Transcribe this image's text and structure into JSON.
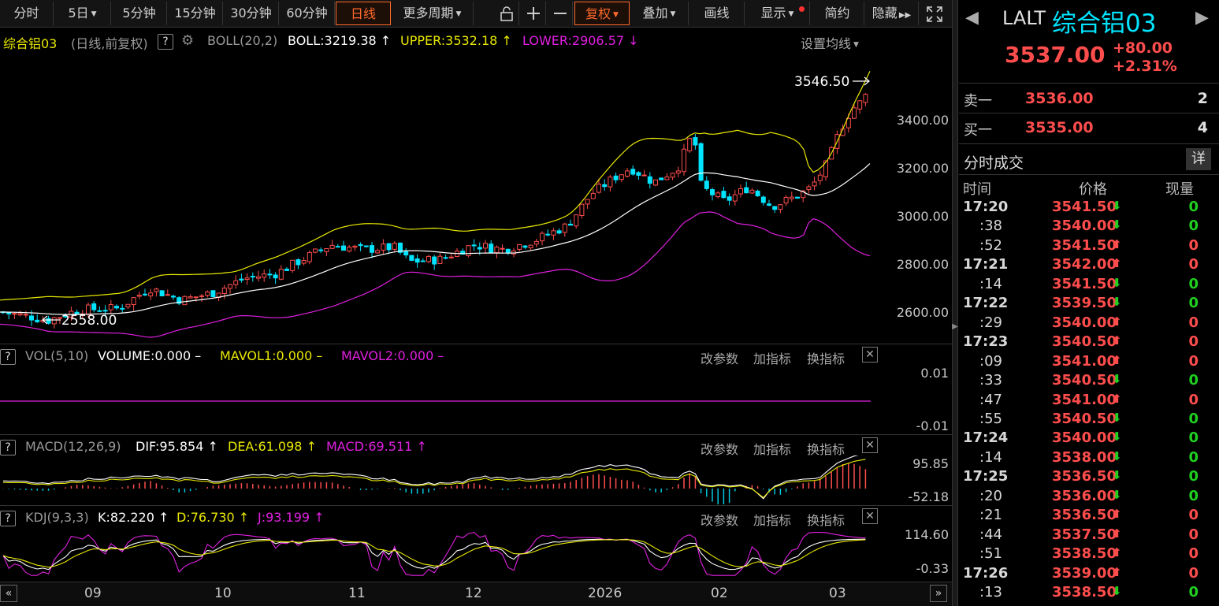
{
  "toolbar": {
    "periods": [
      {
        "label": "分时",
        "dropdown": false
      },
      {
        "label": "5日",
        "dropdown": true
      },
      {
        "label": "5分钟",
        "dropdown": false
      },
      {
        "label": "15分钟",
        "dropdown": false
      },
      {
        "label": "30分钟",
        "dropdown": false
      },
      {
        "label": "60分钟",
        "dropdown": false
      },
      {
        "label": "日线",
        "dropdown": false,
        "active": true
      },
      {
        "label": "更多周期",
        "dropdown": true
      }
    ],
    "icons": [
      "lock-icon",
      "zoom-in-icon",
      "zoom-out-icon"
    ],
    "right_buttons": [
      {
        "label": "复权",
        "dropdown": true
      },
      {
        "label": "叠加",
        "dropdown": true
      },
      {
        "label": "画线",
        "dropdown": false
      },
      {
        "label": "显示",
        "dropdown": true
      },
      {
        "label": "简约",
        "dropdown": false
      },
      {
        "label": "隐藏",
        "dropdown": false
      }
    ]
  },
  "main_chart": {
    "name": "综合铝03",
    "mode": "(日线,前复权)",
    "help": "?",
    "indicator": "BOLL(20,2)",
    "boll": "BOLL:3219.38",
    "upper": "UPPER:3532.18",
    "lower": "LOWER:2906.57",
    "settings": "设置均线",
    "high_label": "3546.50",
    "low_label": "2558.00",
    "y_labels": [
      "3400.00",
      "3200.00",
      "3000.00",
      "2800.00",
      "2600.00"
    ]
  },
  "vol_panel": {
    "help": "?",
    "name": "VOL(5,10)",
    "v1": "VOLUME:0.000",
    "v2": "MAVOL1:0.000",
    "v3": "MAVOL2:0.000",
    "y_labels": [
      "0.01",
      "-0.01"
    ]
  },
  "macd_panel": {
    "help": "?",
    "name": "MACD(12,26,9)",
    "v1": "DIF:95.854",
    "v2": "DEA:61.098",
    "v3": "MACD:69.511",
    "y_labels": [
      "95.85",
      "-52.18"
    ]
  },
  "kdj_panel": {
    "help": "?",
    "name": "KDJ(9,3,3)",
    "v1": "K:82.220",
    "v2": "D:76.730",
    "v3": "J:93.199",
    "y_labels": [
      "114.60",
      "-0.33"
    ]
  },
  "panel_tools": {
    "params": "改参数",
    "add": "加指标",
    "switch": "换指标"
  },
  "x_axis": [
    "09",
    "10",
    "11",
    "12",
    "2026",
    "02",
    "03"
  ],
  "colors": {
    "up": "#ff4d4d",
    "down": "#00e5ff",
    "upper": "#e8e800",
    "mid": "#ffffff",
    "lower": "#e020e0",
    "accent": "#ff6a2a"
  },
  "quote": {
    "symbol": "LALT",
    "name": "综合铝03",
    "price": "3537.00",
    "change": "+80.00",
    "change_pct": "+2.31%",
    "ask_label": "卖一",
    "ask_price": "3536.00",
    "ask_vol": "2",
    "bid_label": "买一",
    "bid_price": "3535.00",
    "bid_vol": "4",
    "ticks_title": "分时成交",
    "detail_btn": "详",
    "col_time": "时间",
    "col_price": "价格",
    "col_vol": "现量"
  },
  "ticks": [
    {
      "time": "17:20",
      "price": "3541.50",
      "dir": "down",
      "vol": "0"
    },
    {
      "time": ":38",
      "price": "3540.00",
      "dir": "down",
      "vol": "0"
    },
    {
      "time": ":52",
      "price": "3541.50",
      "dir": "up",
      "vol": "0"
    },
    {
      "time": "17:21",
      "price": "3542.00",
      "dir": "up",
      "vol": "0"
    },
    {
      "time": ":14",
      "price": "3541.50",
      "dir": "down",
      "vol": "0"
    },
    {
      "time": "17:22",
      "price": "3539.50",
      "dir": "down",
      "vol": "0"
    },
    {
      "time": ":29",
      "price": "3540.00",
      "dir": "up",
      "vol": "0"
    },
    {
      "time": "17:23",
      "price": "3540.50",
      "dir": "up",
      "vol": "0"
    },
    {
      "time": ":09",
      "price": "3541.00",
      "dir": "up",
      "vol": "0"
    },
    {
      "time": ":33",
      "price": "3540.50",
      "dir": "down",
      "vol": "0"
    },
    {
      "time": ":47",
      "price": "3541.00",
      "dir": "up",
      "vol": "0"
    },
    {
      "time": ":55",
      "price": "3540.50",
      "dir": "down",
      "vol": "0"
    },
    {
      "time": "17:24",
      "price": "3540.00",
      "dir": "down",
      "vol": "0"
    },
    {
      "time": ":14",
      "price": "3538.00",
      "dir": "down",
      "vol": "0"
    },
    {
      "time": "17:25",
      "price": "3536.50",
      "dir": "down",
      "vol": "0"
    },
    {
      "time": ":20",
      "price": "3536.00",
      "dir": "down",
      "vol": "0"
    },
    {
      "time": ":21",
      "price": "3536.50",
      "dir": "up",
      "vol": "0"
    },
    {
      "time": ":44",
      "price": "3537.50",
      "dir": "up",
      "vol": "0"
    },
    {
      "time": ":51",
      "price": "3538.50",
      "dir": "up",
      "vol": "0"
    },
    {
      "time": "17:26",
      "price": "3539.00",
      "dir": "up",
      "vol": "0"
    },
    {
      "time": ":13",
      "price": "3538.50",
      "dir": "down",
      "vol": "0"
    }
  ]
}
